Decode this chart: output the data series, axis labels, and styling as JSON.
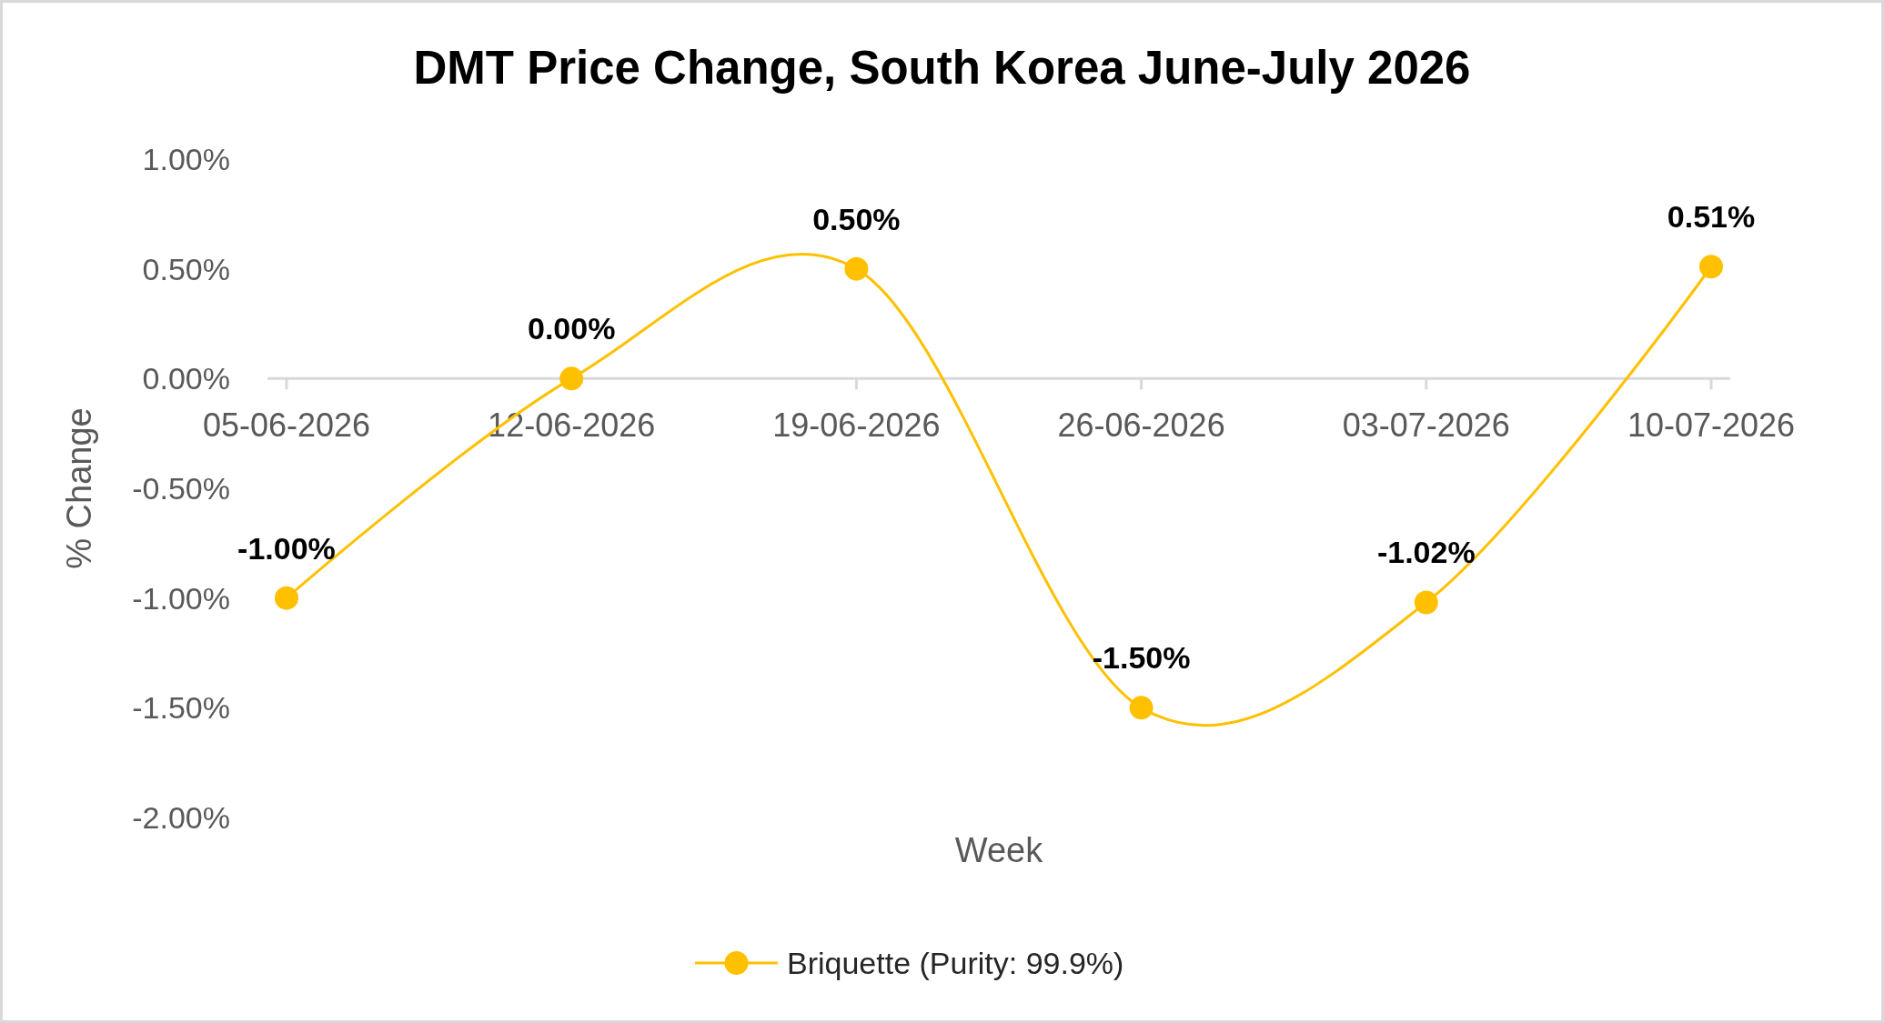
{
  "chart_data": {
    "type": "line",
    "title": "DMT Price Change, South Korea June-July 2026",
    "xlabel": "Week",
    "ylabel": "% Change",
    "categories": [
      "05-06-2026",
      "12-06-2026",
      "19-06-2026",
      "26-06-2026",
      "03-07-2026",
      "10-07-2026"
    ],
    "series": [
      {
        "name": "Briquette (Purity: 99.9%)",
        "color": "#ffc000",
        "values": [
          -1.0,
          0.0,
          0.5,
          -1.5,
          -1.02,
          0.51
        ],
        "value_labels": [
          "-1.00%",
          "0.00%",
          "0.50%",
          "-1.50%",
          "-1.02%",
          "0.51%"
        ]
      }
    ],
    "ylim": [
      -2,
      1
    ],
    "yticks": [
      {
        "value": -2,
        "label": "-2.00%"
      },
      {
        "value": -1.5,
        "label": "-1.50%"
      },
      {
        "value": -1,
        "label": "-1.00%"
      },
      {
        "value": -0.5,
        "label": "-0.50%"
      },
      {
        "value": 0,
        "label": "0.00%"
      },
      {
        "value": 0.5,
        "label": "0.50%"
      },
      {
        "value": 1,
        "label": "1.00%"
      }
    ],
    "legend": "bottom",
    "marker": "circle",
    "line_style": "solid"
  }
}
